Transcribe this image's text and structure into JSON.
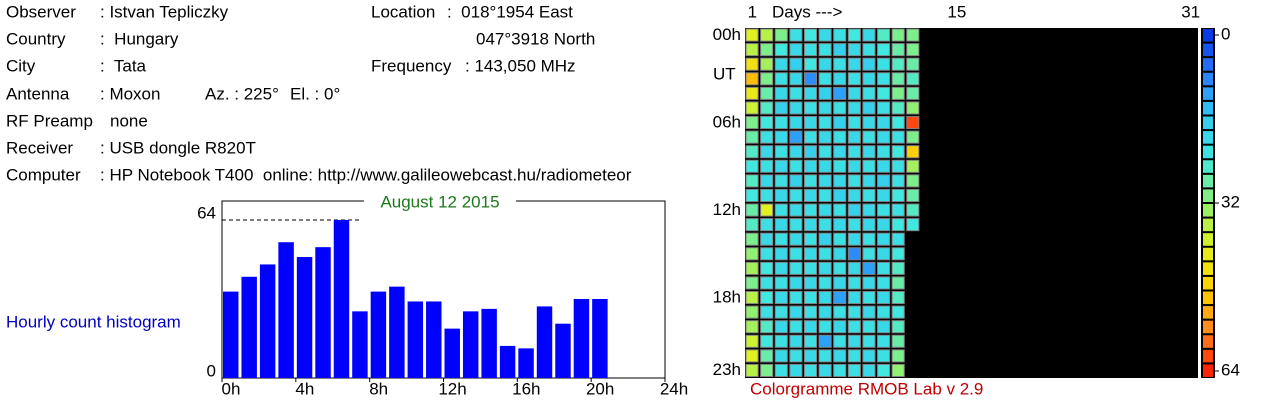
{
  "header": {
    "fields": [
      {
        "label": "Observer",
        "value": ": Istvan Tepliczky"
      },
      {
        "label": "Country",
        "value": ":  Hungary"
      },
      {
        "label": "City",
        "value": ":  Tata"
      },
      {
        "label": "Antenna",
        "value": ": Moxon"
      },
      {
        "label": "RF Preamp",
        "value": "none"
      },
      {
        "label": "Receiver",
        "value": ": USB dongle R820T"
      },
      {
        "label": "Computer",
        "value": ": HP Notebook T400  online: http://www.galileowebcast.hu/radiometeor"
      }
    ],
    "azimuth": "Az. : 225°",
    "elevation": "El. : 0°",
    "location_label": "Location",
    "location_lon": ":  018°1954 East",
    "location_lat": "047°3918 North",
    "frequency_label": "Frequency",
    "frequency_value": ": 143,050 MHz"
  },
  "chart_data": [
    {
      "type": "bar",
      "title": "August 12 2015",
      "y_label": "Hourly count histogram",
      "color": "#0000ff",
      "x": [
        0,
        1,
        2,
        3,
        4,
        5,
        6,
        7,
        8,
        9,
        10,
        11,
        12,
        13,
        14,
        15,
        16,
        17,
        18,
        19,
        20,
        21,
        22,
        23
      ],
      "values": [
        35,
        41,
        46,
        55,
        49,
        53,
        64,
        27,
        35,
        37,
        31,
        31,
        20,
        27,
        28,
        13,
        12,
        29,
        22,
        32,
        32,
        null,
        null,
        null
      ],
      "xlim": [
        0,
        24
      ],
      "xticks": [
        {
          "value": 0,
          "label": "0h"
        },
        {
          "value": 4,
          "label": "4h"
        },
        {
          "value": 8,
          "label": "8h"
        },
        {
          "value": 12,
          "label": "12h"
        },
        {
          "value": 16,
          "label": "16h"
        },
        {
          "value": 20,
          "label": "20h"
        },
        {
          "value": 24,
          "label": "24h"
        }
      ],
      "ylim": [
        0,
        64
      ],
      "yticks": [
        0,
        64
      ]
    },
    {
      "type": "heatmap",
      "title": "Colorgramme RMOB Lab v 2.9",
      "x_label": "Days --->",
      "y_unit": "UT",
      "xlim": [
        1,
        31
      ],
      "xticks": [
        1,
        15,
        31
      ],
      "yticks": [
        {
          "value": 0,
          "label": "00h"
        },
        {
          "value": 6,
          "label": "06h"
        },
        {
          "value": 12,
          "label": "12h"
        },
        {
          "value": 18,
          "label": "18h"
        },
        {
          "value": 23,
          "label": "23h"
        }
      ],
      "zlim": [
        0,
        64
      ],
      "zticks": [
        0,
        32,
        64
      ],
      "colorscale": [
        "#0030e0",
        "#2a78ff",
        "#30c8f0",
        "#40e8e0",
        "#90f070",
        "#e0f020",
        "#ffd000",
        "#ff8020",
        "#ff1000"
      ],
      "rows": [
        [
          40,
          36,
          30,
          22,
          24,
          20,
          22,
          24,
          20,
          26,
          30,
          30
        ],
        [
          36,
          30,
          24,
          20,
          22,
          22,
          18,
          20,
          22,
          24,
          28,
          30
        ],
        [
          44,
          34,
          20,
          18,
          24,
          20,
          22,
          20,
          18,
          22,
          26,
          28
        ],
        [
          50,
          30,
          22,
          20,
          10,
          22,
          20,
          22,
          20,
          22,
          28,
          26
        ],
        [
          42,
          28,
          20,
          22,
          20,
          18,
          12,
          20,
          22,
          24,
          30,
          28
        ],
        [
          38,
          26,
          18,
          20,
          22,
          20,
          22,
          20,
          18,
          22,
          26,
          32
        ],
        [
          30,
          24,
          22,
          20,
          20,
          22,
          18,
          22,
          20,
          20,
          24,
          60
        ],
        [
          28,
          22,
          20,
          12,
          22,
          20,
          22,
          20,
          22,
          20,
          22,
          30
        ],
        [
          26,
          20,
          22,
          20,
          18,
          22,
          20,
          22,
          20,
          22,
          24,
          48
        ],
        [
          24,
          22,
          20,
          22,
          20,
          20,
          22,
          20,
          22,
          20,
          22,
          34
        ],
        [
          26,
          20,
          22,
          18,
          22,
          20,
          20,
          22,
          20,
          18,
          22,
          30
        ],
        [
          24,
          22,
          20,
          22,
          20,
          22,
          18,
          20,
          22,
          20,
          24,
          28
        ],
        [
          28,
          40,
          22,
          20,
          22,
          20,
          22,
          18,
          20,
          22,
          22,
          26
        ],
        [
          26,
          22,
          20,
          22,
          20,
          22,
          20,
          22,
          20,
          20,
          24,
          24
        ],
        [
          30,
          20,
          22,
          20,
          22,
          18,
          22,
          20,
          22,
          20,
          22,
          null
        ],
        [
          32,
          22,
          20,
          22,
          20,
          22,
          20,
          10,
          22,
          20,
          24,
          null
        ],
        [
          34,
          24,
          20,
          22,
          22,
          20,
          22,
          20,
          12,
          22,
          26,
          null
        ],
        [
          30,
          22,
          22,
          20,
          20,
          22,
          20,
          22,
          20,
          22,
          28,
          null
        ],
        [
          36,
          24,
          20,
          22,
          22,
          20,
          12,
          20,
          22,
          20,
          26,
          null
        ],
        [
          32,
          22,
          22,
          20,
          22,
          20,
          22,
          22,
          20,
          22,
          24,
          null
        ],
        [
          34,
          26,
          20,
          22,
          20,
          22,
          20,
          22,
          22,
          20,
          26,
          null
        ],
        [
          38,
          24,
          22,
          20,
          22,
          12,
          22,
          20,
          22,
          22,
          28,
          null
        ],
        [
          40,
          28,
          20,
          22,
          20,
          22,
          20,
          22,
          20,
          22,
          30,
          null
        ],
        [
          36,
          30,
          22,
          20,
          22,
          20,
          22,
          22,
          20,
          24,
          32,
          null
        ]
      ]
    }
  ]
}
